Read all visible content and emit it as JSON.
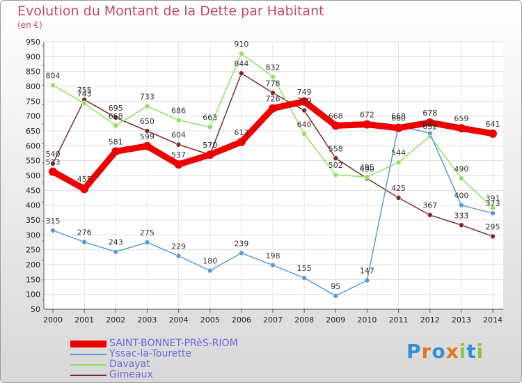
{
  "header": {
    "title": "Evolution du Montant de la Dette par Habitant",
    "unit": "(en €)"
  },
  "logo": {
    "text": "Proxiti"
  },
  "chart_data": {
    "type": "line",
    "title": "Evolution du Montant de la Dette par Habitant",
    "ylabel": "(en €)",
    "xlabel": "",
    "x": [
      "2000",
      "2001",
      "2002",
      "2003",
      "2004",
      "2005",
      "2006",
      "2007",
      "2008",
      "2009",
      "2010",
      "2011",
      "2012",
      "2013",
      "2014"
    ],
    "ylim": [
      50,
      950
    ],
    "yticks": [
      50,
      100,
      150,
      200,
      250,
      300,
      350,
      400,
      450,
      500,
      550,
      600,
      650,
      700,
      750,
      800,
      850,
      900,
      950
    ],
    "grid": true,
    "legend_position": "bottom-left",
    "series": [
      {
        "name": "SAINT-BONNET-PRèS-RIOM",
        "color": "#ee0000",
        "width": 9,
        "marker": 6,
        "values": [
          513,
          455,
          581,
          599,
          537,
          570,
          613,
          726,
          749,
          668,
          672,
          660,
          678,
          659,
          641
        ],
        "labels": [
          "513",
          "455",
          "581",
          "599",
          "537",
          "570",
          "613",
          "726",
          "749",
          "668",
          "672",
          "660",
          "678",
          "659",
          "641"
        ]
      },
      {
        "name": "Yssac-la-Tourette",
        "color": "#5b9bd5",
        "width": 1.5,
        "marker": 3.5,
        "values": [
          315,
          276,
          243,
          275,
          229,
          180,
          239,
          198,
          155,
          95,
          147,
          668,
          642,
          400,
          373
        ],
        "labels": [
          "315",
          "276",
          "243",
          "275",
          "229",
          "180",
          "239",
          "198",
          "155",
          "95",
          "147",
          "668",
          "642",
          "400",
          "373"
        ]
      },
      {
        "name": "Davayat",
        "color": "#90e060",
        "width": 1.5,
        "marker": 3.5,
        "values": [
          804,
          743,
          668,
          733,
          686,
          663,
          910,
          832,
          640,
          502,
          495,
          544,
          632,
          490,
          391
        ],
        "labels": [
          "804",
          "743",
          "668",
          "733",
          "686",
          "663",
          "910",
          "832",
          "640",
          "502",
          "495",
          "544",
          "632",
          "490",
          "391"
        ]
      },
      {
        "name": "Gimeaux",
        "color": "#7b2b2b",
        "width": 1.5,
        "marker": 3.5,
        "values": [
          540,
          755,
          695,
          650,
          604,
          570,
          844,
          778,
          719,
          558,
          490,
          425,
          367,
          333,
          295
        ],
        "labels": [
          "540",
          "755",
          "695",
          "650",
          "604",
          "570",
          "844",
          "778",
          "719",
          "558",
          "490",
          "425",
          "367",
          "333",
          "295"
        ]
      }
    ]
  }
}
